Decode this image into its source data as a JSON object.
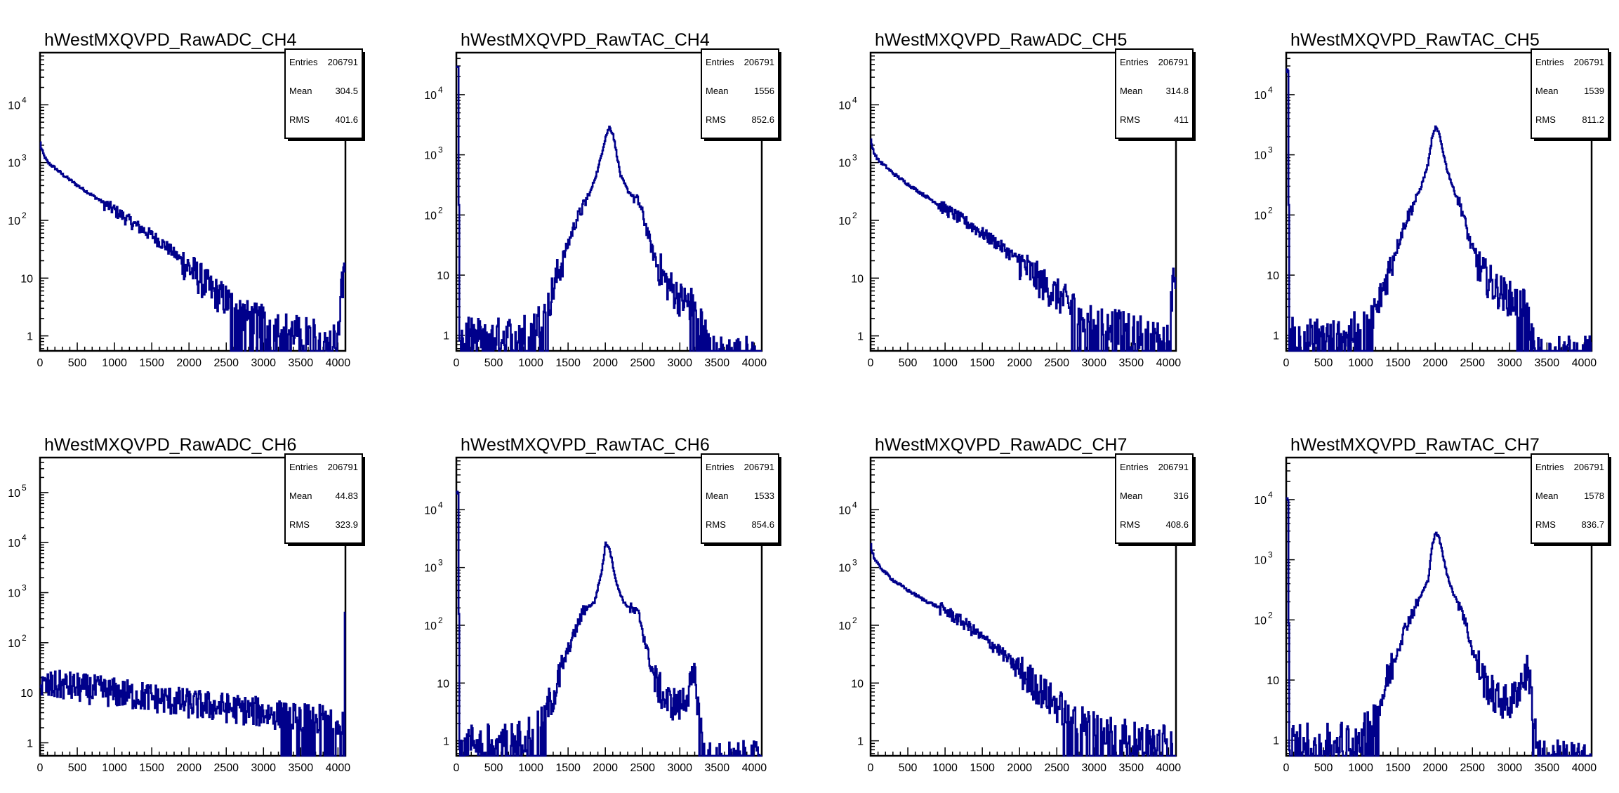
{
  "theme": {
    "line_color": "#00008b",
    "axis_color": "#000000"
  },
  "chart_data": [
    {
      "type": "line",
      "title": "hWestMXQVPD_RawADC_CH4",
      "xlabel": "",
      "ylabel": "",
      "xlim": [
        0,
        4100
      ],
      "ylog": true,
      "ylim": [
        0.55,
        80000
      ],
      "xticks": [
        "0",
        "500",
        "1000",
        "1500",
        "2000",
        "2500",
        "3000",
        "3500",
        "4000"
      ],
      "yticks": [
        {
          "v": 1,
          "label": "1"
        },
        {
          "v": 10,
          "label": "10"
        },
        {
          "v": 100,
          "label": "10",
          "exp": "2"
        },
        {
          "v": 1000,
          "label": "10",
          "exp": "3"
        },
        {
          "v": 10000,
          "label": "10",
          "exp": "4"
        }
      ],
      "stats": [
        {
          "label": "Entries",
          "value": "206791"
        },
        {
          "label": "Mean",
          "value": "304.5"
        },
        {
          "label": "RMS",
          "value": "401.6"
        }
      ],
      "series": [
        {
          "shape": "adc",
          "x": [
            0,
            10,
            50,
            100,
            200,
            300,
            500,
            700,
            1000,
            1300,
            1500,
            1700,
            1900,
            2100,
            2300,
            2500,
            2800,
            3100,
            3400,
            3700,
            4000,
            4050
          ],
          "values": [
            2200,
            1800,
            1300,
            1000,
            800,
            620,
            400,
            270,
            150,
            80,
            55,
            35,
            20,
            11,
            6,
            4,
            2,
            1.6,
            1.2,
            1,
            1,
            9
          ]
        }
      ],
      "legend": "top-right"
    },
    {
      "type": "line",
      "title": "hWestMXQVPD_RawTAC_CH4",
      "xlabel": "",
      "ylabel": "",
      "xlim": [
        0,
        4100
      ],
      "ylog": true,
      "ylim": [
        0.55,
        50000
      ],
      "xticks": [
        "0",
        "500",
        "1000",
        "1500",
        "2000",
        "2500",
        "3000",
        "3500",
        "4000"
      ],
      "yticks": [
        {
          "v": 1,
          "label": "1"
        },
        {
          "v": 10,
          "label": "10"
        },
        {
          "v": 100,
          "label": "10",
          "exp": "2"
        },
        {
          "v": 1000,
          "label": "10",
          "exp": "3"
        },
        {
          "v": 10000,
          "label": "10",
          "exp": "4"
        }
      ],
      "stats": [
        {
          "label": "Entries",
          "value": "206791"
        },
        {
          "label": "Mean",
          "value": "1556"
        },
        {
          "label": "RMS",
          "value": "852.6"
        }
      ],
      "series": [
        {
          "shape": "tac",
          "x": [
            0,
            20,
            40,
            200,
            600,
            1000,
            1200,
            1400,
            1600,
            1800,
            1900,
            2000,
            2050,
            2100,
            2200,
            2300,
            2450,
            2550,
            2650,
            2800,
            3000,
            3200,
            3350,
            3400
          ],
          "values": [
            30000,
            30000,
            1,
            1,
            1,
            1.2,
            2.5,
            15,
            80,
            250,
            600,
            2000,
            2900,
            2200,
            450,
            250,
            160,
            60,
            20,
            8,
            4,
            3,
            1,
            0.5
          ]
        }
      ],
      "legend": "top-right"
    },
    {
      "type": "line",
      "title": "hWestMXQVPD_RawADC_CH5",
      "xlabel": "",
      "ylabel": "",
      "xlim": [
        0,
        4100
      ],
      "ylog": true,
      "ylim": [
        0.55,
        80000
      ],
      "xticks": [
        "0",
        "500",
        "1000",
        "1500",
        "2000",
        "2500",
        "3000",
        "3500",
        "4000"
      ],
      "yticks": [
        {
          "v": 1,
          "label": "1"
        },
        {
          "v": 10,
          "label": "10"
        },
        {
          "v": 100,
          "label": "10",
          "exp": "2"
        },
        {
          "v": 1000,
          "label": "10",
          "exp": "3"
        },
        {
          "v": 10000,
          "label": "10",
          "exp": "4"
        }
      ],
      "stats": [
        {
          "label": "Entries",
          "value": "206791"
        },
        {
          "label": "Mean",
          "value": "314.8"
        },
        {
          "label": "RMS",
          "value": "411"
        }
      ],
      "series": [
        {
          "shape": "adc",
          "x": [
            0,
            10,
            50,
            100,
            200,
            300,
            500,
            700,
            1000,
            1300,
            1500,
            1700,
            1900,
            2100,
            2300,
            2500,
            2800,
            3100,
            3400,
            3700,
            4000,
            4050
          ],
          "values": [
            2400,
            2000,
            1400,
            1100,
            850,
            650,
            420,
            280,
            160,
            90,
            60,
            40,
            25,
            14,
            8,
            5,
            2.5,
            1.8,
            1.3,
            1.1,
            1,
            8
          ]
        }
      ],
      "legend": "top-right"
    },
    {
      "type": "line",
      "title": "hWestMXQVPD_RawTAC_CH5",
      "xlabel": "",
      "ylabel": "",
      "xlim": [
        0,
        4100
      ],
      "ylog": true,
      "ylim": [
        0.55,
        50000
      ],
      "xticks": [
        "0",
        "500",
        "1000",
        "1500",
        "2000",
        "2500",
        "3000",
        "3500",
        "4000"
      ],
      "yticks": [
        {
          "v": 1,
          "label": "1"
        },
        {
          "v": 10,
          "label": "10"
        },
        {
          "v": 100,
          "label": "10",
          "exp": "2"
        },
        {
          "v": 1000,
          "label": "10",
          "exp": "3"
        },
        {
          "v": 10000,
          "label": "10",
          "exp": "4"
        }
      ],
      "stats": [
        {
          "label": "Entries",
          "value": "206791"
        },
        {
          "label": "Mean",
          "value": "1539"
        },
        {
          "label": "RMS",
          "value": "811.2"
        }
      ],
      "series": [
        {
          "shape": "tac",
          "x": [
            0,
            20,
            40,
            200,
            600,
            1000,
            1200,
            1400,
            1600,
            1800,
            1900,
            1950,
            2000,
            2050,
            2150,
            2250,
            2350,
            2450,
            2600,
            2800,
            3000,
            3200,
            3300,
            3350
          ],
          "values": [
            25000,
            25000,
            1,
            1,
            1,
            1.3,
            2.5,
            15,
            80,
            280,
            700,
            1800,
            2900,
            2200,
            600,
            250,
            130,
            40,
            12,
            6,
            4,
            3,
            1,
            0.5
          ]
        }
      ],
      "legend": "top-right"
    },
    {
      "type": "line",
      "title": "hWestMXQVPD_RawADC_CH6",
      "xlabel": "",
      "ylabel": "",
      "xlim": [
        0,
        4100
      ],
      "ylog": true,
      "ylim": [
        0.55,
        500000
      ],
      "xticks": [
        "0",
        "500",
        "1000",
        "1500",
        "2000",
        "2500",
        "3000",
        "3500",
        "4000"
      ],
      "yticks": [
        {
          "v": 1,
          "label": "1"
        },
        {
          "v": 10,
          "label": "10"
        },
        {
          "v": 100,
          "label": "10",
          "exp": "2"
        },
        {
          "v": 1000,
          "label": "10",
          "exp": "3"
        },
        {
          "v": 10000,
          "label": "10",
          "exp": "4"
        },
        {
          "v": 100000,
          "label": "10",
          "exp": "5"
        }
      ],
      "stats": [
        {
          "label": "Entries",
          "value": "206791"
        },
        {
          "label": "Mean",
          "value": "44.83"
        },
        {
          "label": "RMS",
          "value": "323.9"
        }
      ],
      "series": [
        {
          "shape": "flat",
          "x": [
            0,
            300,
            600,
            1000,
            1500,
            2000,
            2500,
            3000,
            3500,
            4000,
            4080,
            4090
          ],
          "values": [
            13,
            14,
            12,
            10,
            8,
            6,
            5,
            4,
            3,
            3,
            3,
            400
          ]
        }
      ],
      "legend": "top-right"
    },
    {
      "type": "line",
      "title": "hWestMXQVPD_RawTAC_CH6",
      "xlabel": "",
      "ylabel": "",
      "xlim": [
        0,
        4100
      ],
      "ylog": true,
      "ylim": [
        0.55,
        80000
      ],
      "xticks": [
        "0",
        "500",
        "1000",
        "1500",
        "2000",
        "2500",
        "3000",
        "3500",
        "4000"
      ],
      "yticks": [
        {
          "v": 1,
          "label": "1"
        },
        {
          "v": 10,
          "label": "10"
        },
        {
          "v": 100,
          "label": "10",
          "exp": "2"
        },
        {
          "v": 1000,
          "label": "10",
          "exp": "3"
        },
        {
          "v": 10000,
          "label": "10",
          "exp": "4"
        }
      ],
      "stats": [
        {
          "label": "Entries",
          "value": "206791"
        },
        {
          "label": "Mean",
          "value": "1533"
        },
        {
          "label": "RMS",
          "value": "854.6"
        }
      ],
      "series": [
        {
          "shape": "tac",
          "x": [
            0,
            20,
            40,
            200,
            600,
            900,
            1100,
            1300,
            1500,
            1700,
            1850,
            1950,
            2000,
            2050,
            2150,
            2250,
            2450,
            2550,
            2650,
            2800,
            3000,
            3200,
            3300,
            3350
          ],
          "values": [
            20000,
            20000,
            1,
            1,
            1,
            1.2,
            2,
            6,
            40,
            180,
            250,
            900,
            2700,
            2200,
            500,
            240,
            150,
            40,
            12,
            5,
            4,
            12,
            1,
            0.5
          ]
        }
      ],
      "legend": "top-right"
    },
    {
      "type": "line",
      "title": "hWestMXQVPD_RawADC_CH7",
      "xlabel": "",
      "ylabel": "",
      "xlim": [
        0,
        4100
      ],
      "ylog": true,
      "ylim": [
        0.55,
        80000
      ],
      "xticks": [
        "0",
        "500",
        "1000",
        "1500",
        "2000",
        "2500",
        "3000",
        "3500",
        "4000"
      ],
      "yticks": [
        {
          "v": 1,
          "label": "1"
        },
        {
          "v": 10,
          "label": "10"
        },
        {
          "v": 100,
          "label": "10",
          "exp": "2"
        },
        {
          "v": 1000,
          "label": "10",
          "exp": "3"
        },
        {
          "v": 10000,
          "label": "10",
          "exp": "4"
        }
      ],
      "stats": [
        {
          "label": "Entries",
          "value": "206791"
        },
        {
          "label": "Mean",
          "value": "316"
        },
        {
          "label": "RMS",
          "value": "408.6"
        }
      ],
      "series": [
        {
          "shape": "adc",
          "x": [
            0,
            10,
            50,
            100,
            200,
            300,
            500,
            700,
            1000,
            1300,
            1500,
            1700,
            1900,
            2100,
            2300,
            2500,
            2800,
            3100,
            3400,
            3700,
            4000,
            4050
          ],
          "values": [
            2600,
            2000,
            1400,
            1100,
            800,
            600,
            400,
            280,
            180,
            100,
            60,
            40,
            22,
            12,
            7,
            4,
            2.5,
            1.6,
            1.2,
            1,
            1,
            1
          ]
        }
      ],
      "legend": "top-right"
    },
    {
      "type": "line",
      "title": "hWestMXQVPD_RawTAC_CH7",
      "xlabel": "",
      "ylabel": "",
      "xlim": [
        0,
        4100
      ],
      "ylog": true,
      "ylim": [
        0.55,
        50000
      ],
      "xticks": [
        "0",
        "500",
        "1000",
        "1500",
        "2000",
        "2500",
        "3000",
        "3500",
        "4000"
      ],
      "yticks": [
        {
          "v": 1,
          "label": "1"
        },
        {
          "v": 10,
          "label": "10"
        },
        {
          "v": 100,
          "label": "10",
          "exp": "2"
        },
        {
          "v": 1000,
          "label": "10",
          "exp": "3"
        },
        {
          "v": 10000,
          "label": "10",
          "exp": "4"
        }
      ],
      "stats": [
        {
          "label": "Entries",
          "value": "206791"
        },
        {
          "label": "Mean",
          "value": "1578"
        },
        {
          "label": "RMS",
          "value": "836.7"
        }
      ],
      "series": [
        {
          "shape": "tac",
          "x": [
            0,
            20,
            40,
            200,
            600,
            1000,
            1200,
            1400,
            1600,
            1800,
            1900,
            1950,
            2000,
            2050,
            2150,
            2250,
            2350,
            2500,
            2650,
            2800,
            3000,
            3250,
            3350,
            3400
          ],
          "values": [
            10000,
            10000,
            1,
            1,
            1,
            1.2,
            2.5,
            15,
            80,
            250,
            450,
            1600,
            2800,
            2300,
            600,
            250,
            160,
            30,
            10,
            5,
            4,
            15,
            1,
            0.5
          ]
        }
      ],
      "legend": "top-right"
    }
  ]
}
